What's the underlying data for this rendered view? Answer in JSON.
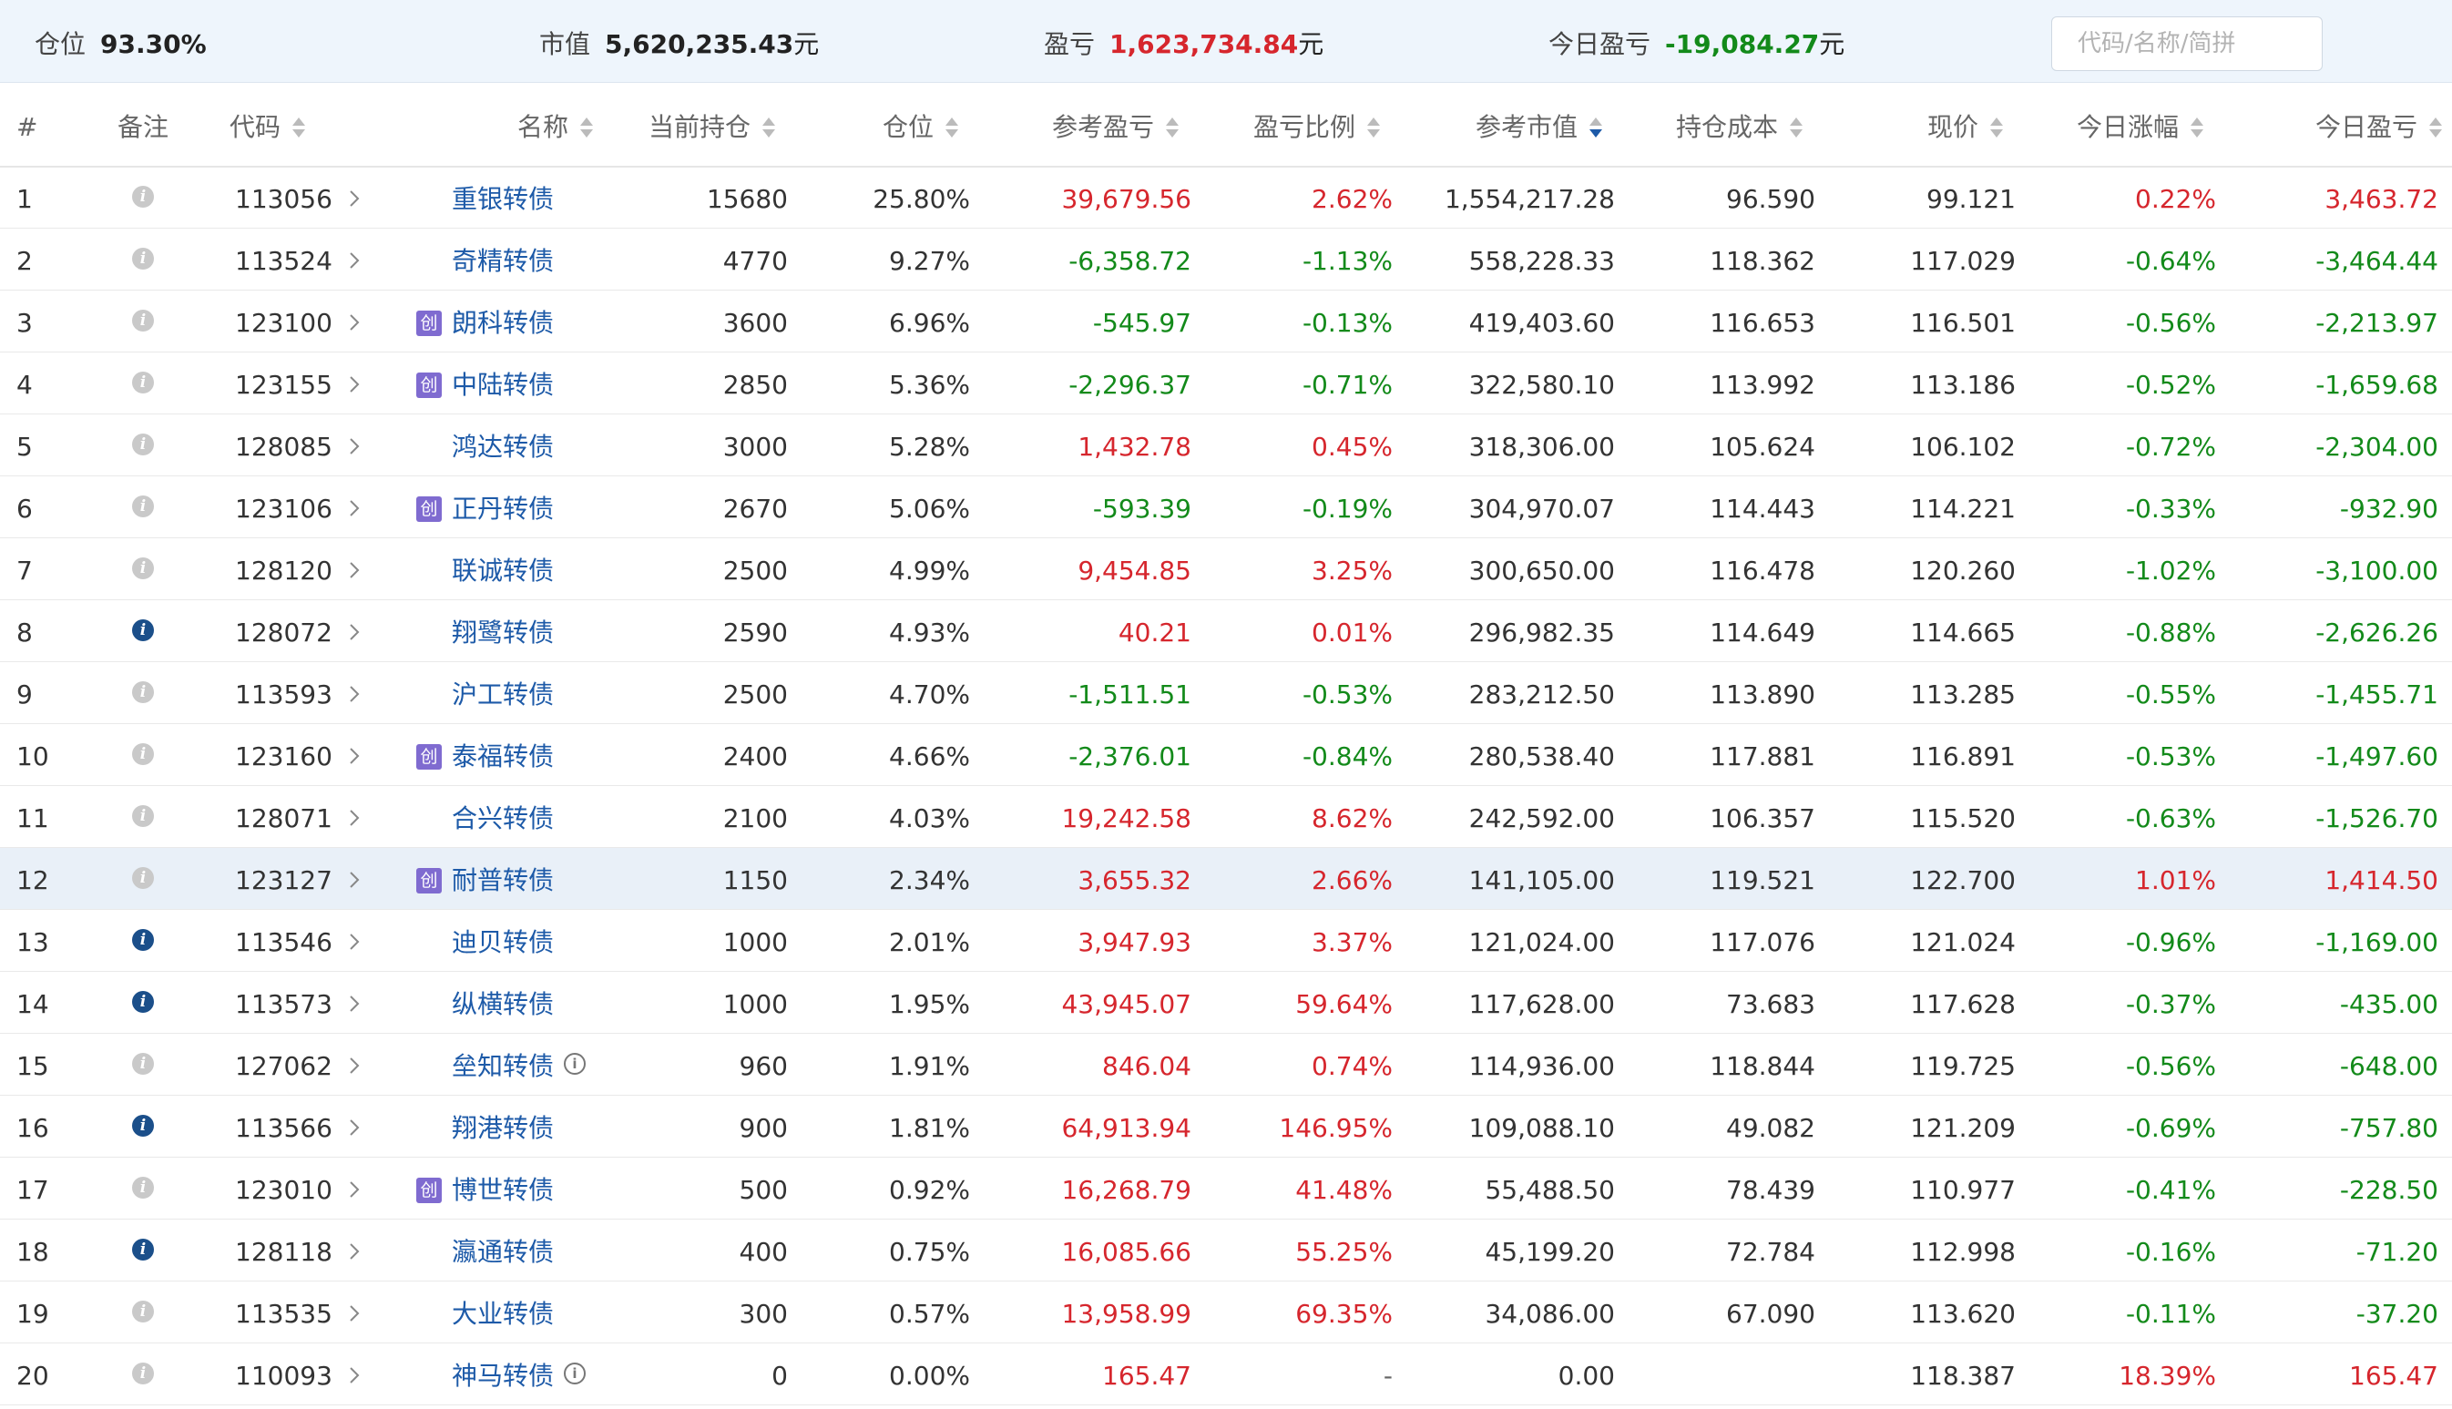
{
  "summary": {
    "position_label": "仓位",
    "position_value": "93.30%",
    "market_label": "市值",
    "market_value": "5,620,235.43",
    "market_unit": "元",
    "pnl_label": "盈亏",
    "pnl_value": "1,623,734.84",
    "pnl_unit": "元",
    "today_label": "今日盈亏",
    "today_value": "-19,084.27",
    "today_unit": "元",
    "search_placeholder": "代码/名称/简拼"
  },
  "columns": {
    "index": "#",
    "note": "备注",
    "code": "代码",
    "name": "名称",
    "holding": "当前持仓",
    "weight": "仓位",
    "pnl": "参考盈亏",
    "pnl_ratio": "盈亏比例",
    "market_value": "参考市值",
    "cost": "持仓成本",
    "price": "现价",
    "change": "今日涨幅",
    "today_pnl": "今日盈亏"
  },
  "colors": {
    "up": "#d6262d",
    "down": "#138a1a",
    "link": "#1d5aa8",
    "header_bg": "#eef5fc",
    "highlight_row": "#e9f0f8",
    "chuang_badge": "#7f6bd0"
  },
  "chuang_badge_text": "创",
  "info_mark_text": "i",
  "rows": [
    {
      "idx": "1",
      "note": false,
      "code": "113056",
      "chuang": false,
      "name": "重银转债",
      "info": false,
      "holding": "15680",
      "weight": "25.80%",
      "pnl": "39,679.56",
      "pnl_ratio": "2.62%",
      "pnl_dir": "up",
      "mv": "1,554,217.28",
      "cost": "96.590",
      "price": "99.121",
      "change": "0.22%",
      "today_pnl": "3,463.72",
      "today_dir": "up"
    },
    {
      "idx": "2",
      "note": false,
      "code": "113524",
      "chuang": false,
      "name": "奇精转债",
      "info": false,
      "holding": "4770",
      "weight": "9.27%",
      "pnl": "-6,358.72",
      "pnl_ratio": "-1.13%",
      "pnl_dir": "down",
      "mv": "558,228.33",
      "cost": "118.362",
      "price": "117.029",
      "change": "-0.64%",
      "today_pnl": "-3,464.44",
      "today_dir": "down"
    },
    {
      "idx": "3",
      "note": false,
      "code": "123100",
      "chuang": true,
      "name": "朗科转债",
      "info": false,
      "holding": "3600",
      "weight": "6.96%",
      "pnl": "-545.97",
      "pnl_ratio": "-0.13%",
      "pnl_dir": "down",
      "mv": "419,403.60",
      "cost": "116.653",
      "price": "116.501",
      "change": "-0.56%",
      "today_pnl": "-2,213.97",
      "today_dir": "down"
    },
    {
      "idx": "4",
      "note": false,
      "code": "123155",
      "chuang": true,
      "name": "中陆转债",
      "info": false,
      "holding": "2850",
      "weight": "5.36%",
      "pnl": "-2,296.37",
      "pnl_ratio": "-0.71%",
      "pnl_dir": "down",
      "mv": "322,580.10",
      "cost": "113.992",
      "price": "113.186",
      "change": "-0.52%",
      "today_pnl": "-1,659.68",
      "today_dir": "down"
    },
    {
      "idx": "5",
      "note": false,
      "code": "128085",
      "chuang": false,
      "name": "鸿达转债",
      "info": false,
      "holding": "3000",
      "weight": "5.28%",
      "pnl": "1,432.78",
      "pnl_ratio": "0.45%",
      "pnl_dir": "up",
      "mv": "318,306.00",
      "cost": "105.624",
      "price": "106.102",
      "change": "-0.72%",
      "today_pnl": "-2,304.00",
      "today_dir": "down"
    },
    {
      "idx": "6",
      "note": false,
      "code": "123106",
      "chuang": true,
      "name": "正丹转债",
      "info": false,
      "holding": "2670",
      "weight": "5.06%",
      "pnl": "-593.39",
      "pnl_ratio": "-0.19%",
      "pnl_dir": "down",
      "mv": "304,970.07",
      "cost": "114.443",
      "price": "114.221",
      "change": "-0.33%",
      "today_pnl": "-932.90",
      "today_dir": "down"
    },
    {
      "idx": "7",
      "note": false,
      "code": "128120",
      "chuang": false,
      "name": "联诚转债",
      "info": false,
      "holding": "2500",
      "weight": "4.99%",
      "pnl": "9,454.85",
      "pnl_ratio": "3.25%",
      "pnl_dir": "up",
      "mv": "300,650.00",
      "cost": "116.478",
      "price": "120.260",
      "change": "-1.02%",
      "today_pnl": "-3,100.00",
      "today_dir": "down"
    },
    {
      "idx": "8",
      "note": true,
      "code": "128072",
      "chuang": false,
      "name": "翔鹭转债",
      "info": false,
      "holding": "2590",
      "weight": "4.93%",
      "pnl": "40.21",
      "pnl_ratio": "0.01%",
      "pnl_dir": "up",
      "mv": "296,982.35",
      "cost": "114.649",
      "price": "114.665",
      "change": "-0.88%",
      "today_pnl": "-2,626.26",
      "today_dir": "down"
    },
    {
      "idx": "9",
      "note": false,
      "code": "113593",
      "chuang": false,
      "name": "沪工转债",
      "info": false,
      "holding": "2500",
      "weight": "4.70%",
      "pnl": "-1,511.51",
      "pnl_ratio": "-0.53%",
      "pnl_dir": "down",
      "mv": "283,212.50",
      "cost": "113.890",
      "price": "113.285",
      "change": "-0.55%",
      "today_pnl": "-1,455.71",
      "today_dir": "down"
    },
    {
      "idx": "10",
      "note": false,
      "code": "123160",
      "chuang": true,
      "name": "泰福转债",
      "info": false,
      "holding": "2400",
      "weight": "4.66%",
      "pnl": "-2,376.01",
      "pnl_ratio": "-0.84%",
      "pnl_dir": "down",
      "mv": "280,538.40",
      "cost": "117.881",
      "price": "116.891",
      "change": "-0.53%",
      "today_pnl": "-1,497.60",
      "today_dir": "down"
    },
    {
      "idx": "11",
      "note": false,
      "code": "128071",
      "chuang": false,
      "name": "合兴转债",
      "info": false,
      "holding": "2100",
      "weight": "4.03%",
      "pnl": "19,242.58",
      "pnl_ratio": "8.62%",
      "pnl_dir": "up",
      "mv": "242,592.00",
      "cost": "106.357",
      "price": "115.520",
      "change": "-0.63%",
      "today_pnl": "-1,526.70",
      "today_dir": "down"
    },
    {
      "idx": "12",
      "note": false,
      "code": "123127",
      "chuang": true,
      "name": "耐普转债",
      "info": false,
      "holding": "1150",
      "weight": "2.34%",
      "pnl": "3,655.32",
      "pnl_ratio": "2.66%",
      "pnl_dir": "up",
      "mv": "141,105.00",
      "cost": "119.521",
      "price": "122.700",
      "change": "1.01%",
      "today_pnl": "1,414.50",
      "today_dir": "up",
      "highlight": true
    },
    {
      "idx": "13",
      "note": true,
      "code": "113546",
      "chuang": false,
      "name": "迪贝转债",
      "info": false,
      "holding": "1000",
      "weight": "2.01%",
      "pnl": "3,947.93",
      "pnl_ratio": "3.37%",
      "pnl_dir": "up",
      "mv": "121,024.00",
      "cost": "117.076",
      "price": "121.024",
      "change": "-0.96%",
      "today_pnl": "-1,169.00",
      "today_dir": "down"
    },
    {
      "idx": "14",
      "note": true,
      "code": "113573",
      "chuang": false,
      "name": "纵横转债",
      "info": false,
      "holding": "1000",
      "weight": "1.95%",
      "pnl": "43,945.07",
      "pnl_ratio": "59.64%",
      "pnl_dir": "up",
      "mv": "117,628.00",
      "cost": "73.683",
      "price": "117.628",
      "change": "-0.37%",
      "today_pnl": "-435.00",
      "today_dir": "down"
    },
    {
      "idx": "15",
      "note": false,
      "code": "127062",
      "chuang": false,
      "name": "垒知转债",
      "info": true,
      "holding": "960",
      "weight": "1.91%",
      "pnl": "846.04",
      "pnl_ratio": "0.74%",
      "pnl_dir": "up",
      "mv": "114,936.00",
      "cost": "118.844",
      "price": "119.725",
      "change": "-0.56%",
      "today_pnl": "-648.00",
      "today_dir": "down"
    },
    {
      "idx": "16",
      "note": true,
      "code": "113566",
      "chuang": false,
      "name": "翔港转债",
      "info": false,
      "holding": "900",
      "weight": "1.81%",
      "pnl": "64,913.94",
      "pnl_ratio": "146.95%",
      "pnl_dir": "up",
      "mv": "109,088.10",
      "cost": "49.082",
      "price": "121.209",
      "change": "-0.69%",
      "today_pnl": "-757.80",
      "today_dir": "down"
    },
    {
      "idx": "17",
      "note": false,
      "code": "123010",
      "chuang": true,
      "name": "博世转债",
      "info": false,
      "holding": "500",
      "weight": "0.92%",
      "pnl": "16,268.79",
      "pnl_ratio": "41.48%",
      "pnl_dir": "up",
      "mv": "55,488.50",
      "cost": "78.439",
      "price": "110.977",
      "change": "-0.41%",
      "today_pnl": "-228.50",
      "today_dir": "down"
    },
    {
      "idx": "18",
      "note": true,
      "code": "128118",
      "chuang": false,
      "name": "瀛通转债",
      "info": false,
      "holding": "400",
      "weight": "0.75%",
      "pnl": "16,085.66",
      "pnl_ratio": "55.25%",
      "pnl_dir": "up",
      "mv": "45,199.20",
      "cost": "72.784",
      "price": "112.998",
      "change": "-0.16%",
      "today_pnl": "-71.20",
      "today_dir": "down"
    },
    {
      "idx": "19",
      "note": false,
      "code": "113535",
      "chuang": false,
      "name": "大业转债",
      "info": false,
      "holding": "300",
      "weight": "0.57%",
      "pnl": "13,958.99",
      "pnl_ratio": "69.35%",
      "pnl_dir": "up",
      "mv": "34,086.00",
      "cost": "67.090",
      "price": "113.620",
      "change": "-0.11%",
      "today_pnl": "-37.20",
      "today_dir": "down"
    },
    {
      "idx": "20",
      "note": false,
      "code": "110093",
      "chuang": false,
      "name": "神马转债",
      "info": true,
      "holding": "0",
      "weight": "0.00%",
      "pnl": "165.47",
      "pnl_ratio": "-",
      "pnl_dir": "up",
      "mv": "0.00",
      "cost": "",
      "price": "118.387",
      "change": "18.39%",
      "today_pnl": "165.47",
      "today_dir": "up"
    }
  ]
}
